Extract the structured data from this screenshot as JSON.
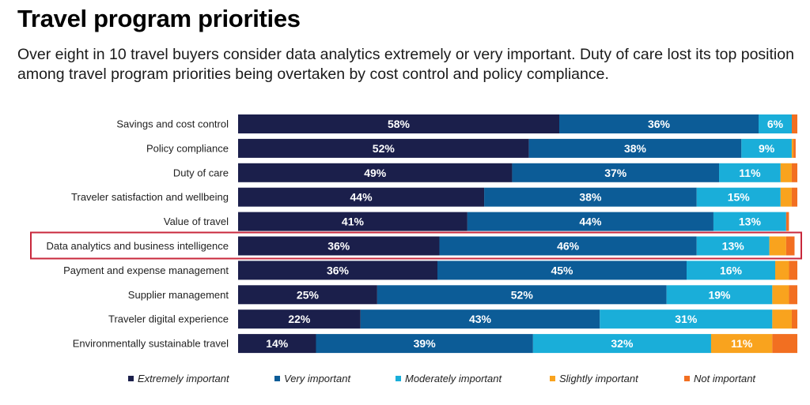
{
  "title": "Travel program priorities",
  "subtitle": "Over eight in 10 travel buyers consider data analytics extremely or very important. Duty of care lost its top position among travel program priorities being overtaken by cost control and policy compliance.",
  "colors": {
    "extremely": "#1b1f4b",
    "very": "#0c5c97",
    "moderately": "#1aaed9",
    "slightly": "#f9a31e",
    "not": "#f26f21",
    "highlight": "#c8283c"
  },
  "chart_data": {
    "type": "bar",
    "orientation": "horizontal",
    "stacked": true,
    "title": "Travel program priorities",
    "categories": [
      "Savings and cost control",
      "Policy compliance",
      "Duty of care",
      "Traveler satisfaction and wellbeing",
      "Value of travel",
      "Data analytics and business intelligence",
      "Payment and expense management",
      "Supplier management",
      "Traveler digital experience",
      "Environmentally sustainable travel"
    ],
    "highlighted_category": "Data analytics and business intelligence",
    "series": [
      {
        "name": "Extremely important",
        "color_key": "extremely",
        "values": [
          58,
          52,
          49,
          44,
          41,
          36,
          36,
          25,
          22,
          14
        ]
      },
      {
        "name": "Very important",
        "color_key": "very",
        "values": [
          36,
          38,
          37,
          38,
          44,
          46,
          45,
          52,
          43,
          39
        ]
      },
      {
        "name": "Moderately important",
        "color_key": "moderately",
        "values": [
          6,
          9,
          11,
          15,
          13,
          13,
          16,
          19,
          31,
          32
        ]
      },
      {
        "name": "Slightly important",
        "color_key": "slightly",
        "values": [
          0,
          0.3,
          2,
          2,
          0,
          3,
          2.5,
          3,
          3.5,
          11
        ]
      },
      {
        "name": "Not important",
        "color_key": "not",
        "values": [
          1,
          0.4,
          1,
          1,
          0.5,
          1.5,
          1.5,
          1.5,
          1,
          4.5
        ]
      }
    ],
    "data_labels": [
      [
        "58%",
        "36%",
        "6%",
        "",
        ""
      ],
      [
        "52%",
        "38%",
        "9%",
        "",
        ""
      ],
      [
        "49%",
        "37%",
        "11%",
        "",
        ""
      ],
      [
        "44%",
        "38%",
        "15%",
        "",
        ""
      ],
      [
        "41%",
        "44%",
        "13%",
        "",
        ""
      ],
      [
        "36%",
        "46%",
        "13%",
        "",
        ""
      ],
      [
        "36%",
        "45%",
        "16%",
        "",
        ""
      ],
      [
        "25%",
        "52%",
        "19%",
        "",
        ""
      ],
      [
        "22%",
        "43%",
        "31%",
        "",
        ""
      ],
      [
        "14%",
        "39%",
        "32%",
        "11%",
        ""
      ]
    ],
    "xlim": [
      0,
      100
    ],
    "legend_position": "bottom",
    "grid": false
  }
}
